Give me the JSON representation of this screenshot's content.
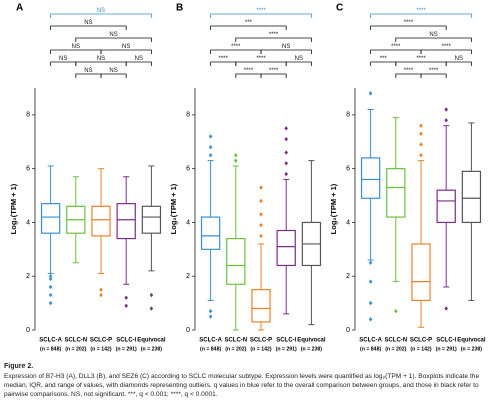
{
  "chart_data": [
    {
      "type": "box",
      "panel": "A",
      "ylabel": "Log₂(TPM + 1)",
      "categories": [
        "SCLC-A",
        "SCLC-N",
        "SCLC-P",
        "SCLC-I",
        "Equivocal"
      ],
      "category_notes": [
        "(n = 848)",
        "(n = 202)",
        "(n = 142)",
        "(n = 291)",
        "(n = 238)"
      ],
      "colors": [
        "#3a8fd0",
        "#6cbf3c",
        "#e8822a",
        "#7b2d8e",
        "#555555"
      ],
      "ylim": [
        0,
        9
      ],
      "yticks": [
        0,
        2,
        4,
        6,
        8
      ],
      "comparisons": [
        "NS",
        "NS",
        "NS",
        "NS",
        "NS",
        "NS",
        "NS",
        "NS",
        "NS",
        "NS"
      ],
      "overall_color": "#3a8fd0",
      "boxes": [
        {
          "whisker_low": 2.1,
          "q1": 3.6,
          "median": 4.2,
          "q3": 4.7,
          "whisker_high": 6.1,
          "outliers": [
            1.0,
            1.3,
            1.6,
            1.9,
            2.0
          ]
        },
        {
          "whisker_low": 2.5,
          "q1": 3.6,
          "median": 4.1,
          "q3": 4.6,
          "whisker_high": 5.7,
          "outliers": []
        },
        {
          "whisker_low": 2.1,
          "q1": 3.5,
          "median": 4.1,
          "q3": 4.6,
          "whisker_high": 6.0,
          "outliers": [
            1.3,
            1.5
          ]
        },
        {
          "whisker_low": 1.7,
          "q1": 3.4,
          "median": 4.1,
          "q3": 4.7,
          "whisker_high": 5.7,
          "outliers": [
            0.9,
            1.2
          ]
        },
        {
          "whisker_low": 2.2,
          "q1": 3.6,
          "median": 4.2,
          "q3": 4.6,
          "whisker_high": 6.1,
          "outliers": [
            0.8,
            1.3
          ]
        }
      ]
    },
    {
      "type": "box",
      "panel": "B",
      "ylabel": "Log₂(TPM + 1)",
      "categories": [
        "SCLC-A",
        "SCLC-N",
        "SCLC-P",
        "SCLC-I",
        "Equivocal"
      ],
      "category_notes": [
        "(n = 848)",
        "(n = 202)",
        "(n = 142)",
        "(n = 291)",
        "(n = 238)"
      ],
      "colors": [
        "#3a8fd0",
        "#6cbf3c",
        "#e8822a",
        "#7b2d8e",
        "#555555"
      ],
      "ylim": [
        0,
        9
      ],
      "yticks": [
        0,
        2,
        4,
        6,
        8
      ],
      "comparisons": [
        "****",
        "***",
        "****",
        "****",
        "NS",
        "****",
        "****",
        "NS",
        "****",
        "****"
      ],
      "overall_color": "#3a8fd0",
      "boxes": [
        {
          "whisker_low": 1.1,
          "q1": 3.0,
          "median": 3.5,
          "q3": 4.2,
          "whisker_high": 6.3,
          "outliers": [
            0.5,
            0.7,
            6.5,
            6.8,
            7.2
          ]
        },
        {
          "whisker_low": 0.0,
          "q1": 1.7,
          "median": 2.4,
          "q3": 3.4,
          "whisker_high": 6.1,
          "outliers": [
            6.3,
            6.5
          ]
        },
        {
          "whisker_low": 0.0,
          "q1": 0.3,
          "median": 0.8,
          "q3": 1.5,
          "whisker_high": 3.2,
          "outliers": [
            3.5,
            3.9,
            4.3,
            4.8,
            5.3
          ]
        },
        {
          "whisker_low": 0.6,
          "q1": 2.4,
          "median": 3.1,
          "q3": 3.7,
          "whisker_high": 5.6,
          "outliers": [
            5.8,
            6.2,
            6.6,
            7.1,
            7.5
          ]
        },
        {
          "whisker_low": 0.2,
          "q1": 2.4,
          "median": 3.2,
          "q3": 4.0,
          "whisker_high": 6.3,
          "outliers": []
        }
      ]
    },
    {
      "type": "box",
      "panel": "C",
      "ylabel": "Log₂(TPM + 1)",
      "categories": [
        "SCLC-A",
        "SCLC-N",
        "SCLC-P",
        "SCLC-I",
        "Equivocal"
      ],
      "category_notes": [
        "(n = 848)",
        "(n = 202)",
        "(n = 142)",
        "(n = 291)",
        "(n = 238)"
      ],
      "colors": [
        "#3a8fd0",
        "#6cbf3c",
        "#e8822a",
        "#7b2d8e",
        "#555555"
      ],
      "ylim": [
        0,
        9
      ],
      "yticks": [
        0,
        2,
        4,
        6,
        8
      ],
      "comparisons": [
        "****",
        "****",
        "NS",
        "****",
        "****",
        "***",
        "****",
        "NS",
        "****",
        "****"
      ],
      "overall_color": "#3a8fd0",
      "boxes": [
        {
          "whisker_low": 2.6,
          "q1": 4.9,
          "median": 5.6,
          "q3": 6.4,
          "whisker_high": 8.2,
          "outliers": [
            0.4,
            1.0,
            1.8,
            2.5,
            8.8
          ]
        },
        {
          "whisker_low": 1.8,
          "q1": 4.2,
          "median": 5.3,
          "q3": 6.0,
          "whisker_high": 7.9,
          "outliers": [
            0.7
          ]
        },
        {
          "whisker_low": 0.1,
          "q1": 1.1,
          "median": 1.8,
          "q3": 3.2,
          "whisker_high": 6.3,
          "outliers": [
            6.5,
            6.9,
            7.3,
            7.6
          ]
        },
        {
          "whisker_low": 1.6,
          "q1": 4.0,
          "median": 4.8,
          "q3": 5.2,
          "whisker_high": 7.6,
          "outliers": [
            0.8,
            7.8,
            8.2
          ]
        },
        {
          "whisker_low": 1.1,
          "q1": 4.0,
          "median": 4.9,
          "q3": 5.9,
          "whisker_high": 7.7,
          "outliers": []
        }
      ]
    }
  ],
  "caption": {
    "title": "Figure 2.",
    "text": "Expression of B7-H3 (A), DLL3 (B), and SEZ6 (C) according to SCLC molecular subtype. Expression levels were quantified as log₂(TPM + 1). Boxplots indicate the median, IQR, and range of values, with diamonds representing outliers. q values in blue refer to the overall comparison between groups, and those in black refer to pairwise comparisons. NS, not significant. ***, q < 0.001; ****, q < 0.0001."
  }
}
